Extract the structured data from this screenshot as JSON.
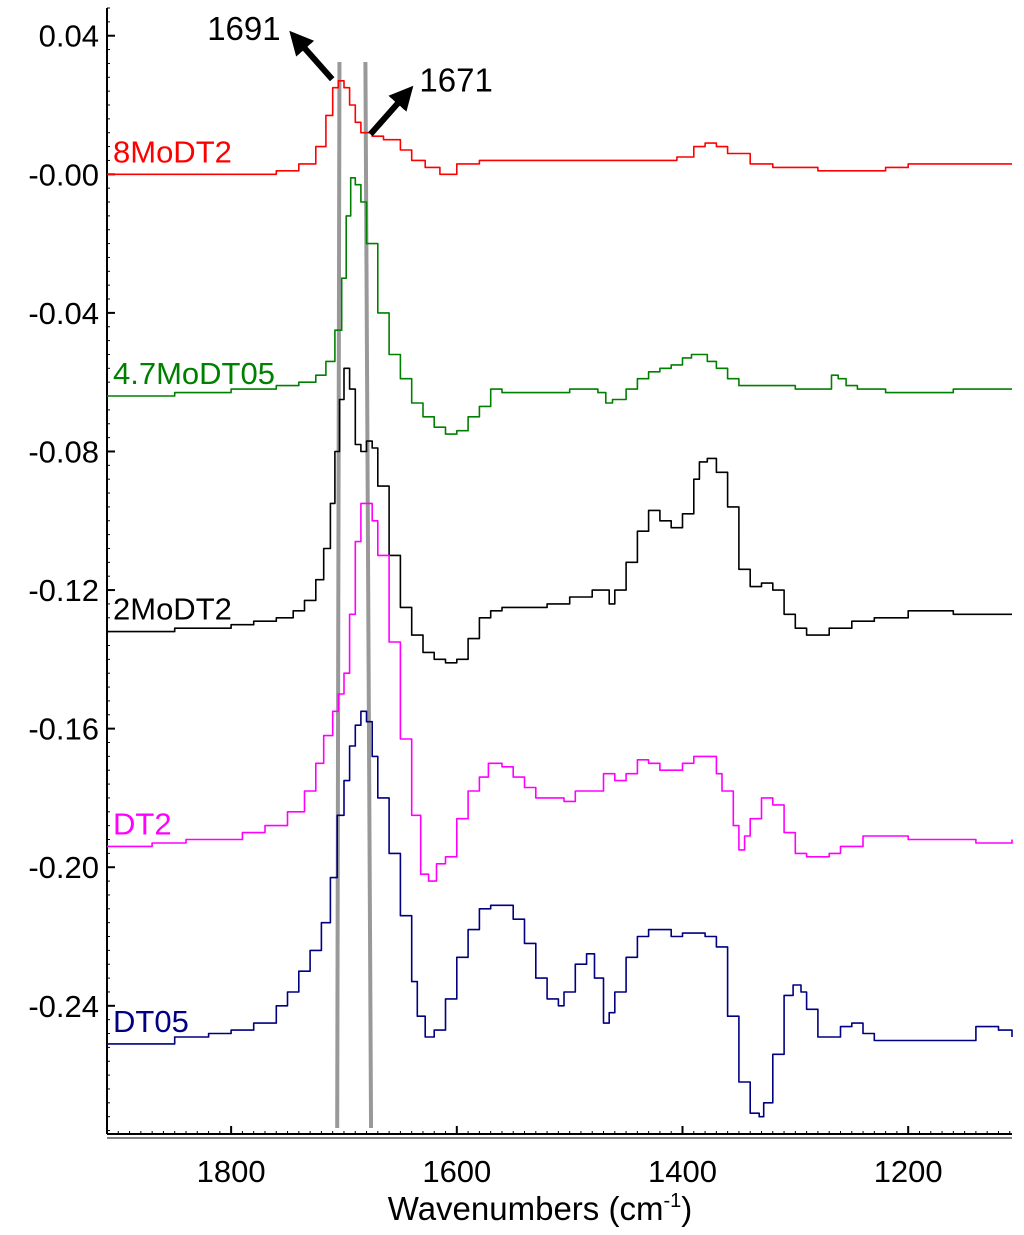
{
  "chart_data": {
    "type": "line",
    "title": "",
    "xlabel": {
      "main": "Wavenumbers (cm",
      "sup": "-1",
      "close": ")"
    },
    "ylabel": "",
    "xlim": [
      1910,
      1108
    ],
    "ylim": [
      -0.277,
      0.048
    ],
    "x_reversed": true,
    "x_ticks": [
      1800,
      1600,
      1400,
      1200
    ],
    "x_tick_labels": [
      "1800",
      "1600",
      "1400",
      "1200"
    ],
    "y_ticks": [
      0.04,
      0.0,
      -0.04,
      -0.08,
      -0.12,
      -0.16,
      -0.2,
      -0.24
    ],
    "y_tick_labels": [
      "0.04",
      "-0.00",
      "-0.04",
      "-0.08",
      "-0.12",
      "-0.16",
      "-0.20",
      "-0.24"
    ],
    "grid": false,
    "legend": "labels placed beside curves",
    "reference_lines": [
      {
        "x_top": 1704,
        "x_bottom": 1706,
        "color": "#999999"
      },
      {
        "x_top": 1681,
        "x_bottom": 1676,
        "color": "#999999"
      }
    ],
    "annotations": [
      {
        "text": "1691",
        "direction": "up-left",
        "anchor_x": 1706,
        "anchor_y": 0.026
      },
      {
        "text": "1671",
        "direction": "up-right",
        "anchor_x": 1681,
        "anchor_y": 0.013
      }
    ],
    "series": [
      {
        "name": "8MoDT2",
        "color": "#ff0000",
        "x": [
          1910,
          1850,
          1800,
          1780,
          1760,
          1740,
          1725,
          1716,
          1710,
          1705,
          1700,
          1695,
          1690,
          1685,
          1675,
          1665,
          1650,
          1640,
          1628,
          1615,
          1600,
          1580,
          1560,
          1540,
          1520,
          1500,
          1480,
          1460,
          1440,
          1420,
          1405,
          1390,
          1380,
          1370,
          1360,
          1340,
          1320,
          1300,
          1280,
          1260,
          1240,
          1220,
          1200,
          1180,
          1160,
          1140,
          1120,
          1108
        ],
        "y": [
          0.0,
          0.0,
          0.0,
          0.0,
          0.001,
          0.003,
          0.008,
          0.017,
          0.025,
          0.027,
          0.025,
          0.02,
          0.015,
          0.012,
          0.011,
          0.01,
          0.007,
          0.004,
          0.002,
          0.0,
          0.003,
          0.004,
          0.004,
          0.004,
          0.004,
          0.004,
          0.004,
          0.004,
          0.004,
          0.004,
          0.005,
          0.008,
          0.009,
          0.008,
          0.006,
          0.003,
          0.002,
          0.002,
          0.001,
          0.001,
          0.001,
          0.002,
          0.003,
          0.003,
          0.003,
          0.003,
          0.003,
          0.003
        ]
      },
      {
        "name": "4.7MoDT05",
        "color": "#008000",
        "x": [
          1910,
          1850,
          1800,
          1780,
          1760,
          1740,
          1725,
          1716,
          1708,
          1702,
          1698,
          1694,
          1690,
          1685,
          1680,
          1670,
          1660,
          1650,
          1640,
          1630,
          1620,
          1610,
          1600,
          1590,
          1580,
          1570,
          1560,
          1540,
          1520,
          1500,
          1485,
          1475,
          1468,
          1462,
          1450,
          1440,
          1430,
          1420,
          1410,
          1400,
          1392,
          1385,
          1378,
          1370,
          1360,
          1350,
          1340,
          1320,
          1300,
          1285,
          1275,
          1268,
          1262,
          1255,
          1245,
          1230,
          1220,
          1200,
          1180,
          1160,
          1140,
          1120,
          1108
        ],
        "y": [
          -0.064,
          -0.063,
          -0.062,
          -0.062,
          -0.061,
          -0.06,
          -0.058,
          -0.054,
          -0.045,
          -0.03,
          -0.012,
          -0.001,
          -0.003,
          -0.008,
          -0.02,
          -0.04,
          -0.052,
          -0.059,
          -0.066,
          -0.07,
          -0.073,
          -0.075,
          -0.074,
          -0.07,
          -0.067,
          -0.062,
          -0.063,
          -0.063,
          -0.063,
          -0.062,
          -0.062,
          -0.063,
          -0.066,
          -0.065,
          -0.062,
          -0.059,
          -0.057,
          -0.056,
          -0.055,
          -0.053,
          -0.052,
          -0.052,
          -0.054,
          -0.056,
          -0.059,
          -0.061,
          -0.061,
          -0.061,
          -0.062,
          -0.062,
          -0.062,
          -0.058,
          -0.059,
          -0.061,
          -0.062,
          -0.062,
          -0.063,
          -0.063,
          -0.063,
          -0.062,
          -0.062,
          -0.062,
          -0.062
        ]
      },
      {
        "name": "2MoDT2",
        "color": "#000000",
        "x": [
          1910,
          1850,
          1800,
          1780,
          1760,
          1745,
          1735,
          1725,
          1718,
          1712,
          1708,
          1704,
          1700,
          1695,
          1690,
          1685,
          1680,
          1675,
          1670,
          1660,
          1650,
          1640,
          1630,
          1620,
          1610,
          1600,
          1590,
          1580,
          1570,
          1560,
          1540,
          1520,
          1500,
          1480,
          1470,
          1465,
          1460,
          1450,
          1440,
          1430,
          1420,
          1410,
          1400,
          1390,
          1385,
          1378,
          1370,
          1360,
          1350,
          1340,
          1330,
          1320,
          1310,
          1300,
          1290,
          1270,
          1250,
          1230,
          1200,
          1180,
          1160,
          1140,
          1120,
          1108
        ],
        "y": [
          -0.132,
          -0.131,
          -0.13,
          -0.129,
          -0.128,
          -0.126,
          -0.123,
          -0.117,
          -0.108,
          -0.095,
          -0.08,
          -0.065,
          -0.056,
          -0.062,
          -0.078,
          -0.08,
          -0.077,
          -0.079,
          -0.09,
          -0.11,
          -0.125,
          -0.133,
          -0.138,
          -0.14,
          -0.141,
          -0.14,
          -0.134,
          -0.128,
          -0.126,
          -0.125,
          -0.125,
          -0.124,
          -0.122,
          -0.12,
          -0.12,
          -0.124,
          -0.12,
          -0.112,
          -0.103,
          -0.097,
          -0.1,
          -0.102,
          -0.098,
          -0.088,
          -0.083,
          -0.082,
          -0.086,
          -0.096,
          -0.114,
          -0.119,
          -0.118,
          -0.12,
          -0.127,
          -0.131,
          -0.133,
          -0.131,
          -0.129,
          -0.128,
          -0.126,
          -0.126,
          -0.127,
          -0.127,
          -0.127,
          -0.127
        ]
      },
      {
        "name": "DT2",
        "color": "#ff00ff",
        "x": [
          1910,
          1870,
          1840,
          1810,
          1790,
          1770,
          1750,
          1735,
          1725,
          1718,
          1710,
          1705,
          1700,
          1695,
          1690,
          1685,
          1680,
          1675,
          1670,
          1660,
          1650,
          1640,
          1632,
          1625,
          1618,
          1610,
          1600,
          1590,
          1580,
          1572,
          1565,
          1560,
          1550,
          1540,
          1530,
          1520,
          1505,
          1495,
          1480,
          1470,
          1460,
          1450,
          1440,
          1430,
          1420,
          1410,
          1400,
          1390,
          1380,
          1370,
          1365,
          1355,
          1350,
          1345,
          1340,
          1330,
          1320,
          1310,
          1300,
          1290,
          1280,
          1270,
          1260,
          1240,
          1220,
          1200,
          1180,
          1160,
          1140,
          1120,
          1108
        ],
        "y": [
          -0.194,
          -0.193,
          -0.192,
          -0.192,
          -0.19,
          -0.188,
          -0.184,
          -0.178,
          -0.17,
          -0.162,
          -0.155,
          -0.15,
          -0.144,
          -0.127,
          -0.106,
          -0.095,
          -0.095,
          -0.1,
          -0.11,
          -0.135,
          -0.163,
          -0.185,
          -0.202,
          -0.204,
          -0.199,
          -0.197,
          -0.186,
          -0.178,
          -0.174,
          -0.17,
          -0.17,
          -0.171,
          -0.174,
          -0.177,
          -0.18,
          -0.18,
          -0.181,
          -0.178,
          -0.178,
          -0.173,
          -0.175,
          -0.173,
          -0.169,
          -0.17,
          -0.172,
          -0.172,
          -0.17,
          -0.168,
          -0.168,
          -0.173,
          -0.178,
          -0.188,
          -0.195,
          -0.191,
          -0.186,
          -0.18,
          -0.182,
          -0.19,
          -0.196,
          -0.197,
          -0.197,
          -0.196,
          -0.194,
          -0.191,
          -0.191,
          -0.192,
          -0.192,
          -0.192,
          -0.193,
          -0.193,
          -0.192
        ]
      },
      {
        "name": "DT05",
        "color": "#000080",
        "x": [
          1910,
          1880,
          1850,
          1820,
          1800,
          1780,
          1760,
          1750,
          1740,
          1730,
          1720,
          1712,
          1706,
          1700,
          1695,
          1690,
          1685,
          1680,
          1675,
          1670,
          1660,
          1650,
          1640,
          1635,
          1628,
          1620,
          1610,
          1600,
          1590,
          1580,
          1570,
          1560,
          1550,
          1540,
          1530,
          1520,
          1510,
          1505,
          1495,
          1485,
          1478,
          1470,
          1465,
          1460,
          1450,
          1440,
          1430,
          1420,
          1410,
          1400,
          1390,
          1380,
          1370,
          1360,
          1350,
          1340,
          1332,
          1328,
          1320,
          1310,
          1302,
          1295,
          1290,
          1280,
          1270,
          1260,
          1250,
          1240,
          1230,
          1220,
          1200,
          1180,
          1160,
          1140,
          1120,
          1108
        ],
        "y": [
          -0.251,
          -0.251,
          -0.249,
          -0.248,
          -0.247,
          -0.245,
          -0.24,
          -0.236,
          -0.23,
          -0.224,
          -0.216,
          -0.203,
          -0.185,
          -0.175,
          -0.165,
          -0.159,
          -0.155,
          -0.158,
          -0.168,
          -0.18,
          -0.196,
          -0.214,
          -0.233,
          -0.243,
          -0.249,
          -0.247,
          -0.238,
          -0.226,
          -0.218,
          -0.212,
          -0.211,
          -0.211,
          -0.215,
          -0.222,
          -0.232,
          -0.238,
          -0.24,
          -0.236,
          -0.228,
          -0.225,
          -0.232,
          -0.245,
          -0.242,
          -0.236,
          -0.226,
          -0.22,
          -0.218,
          -0.218,
          -0.22,
          -0.219,
          -0.219,
          -0.22,
          -0.223,
          -0.243,
          -0.262,
          -0.271,
          -0.272,
          -0.268,
          -0.254,
          -0.237,
          -0.234,
          -0.236,
          -0.241,
          -0.249,
          -0.249,
          -0.246,
          -0.245,
          -0.248,
          -0.25,
          -0.25,
          -0.25,
          -0.25,
          -0.25,
          -0.246,
          -0.247,
          -0.249
        ]
      }
    ]
  }
}
